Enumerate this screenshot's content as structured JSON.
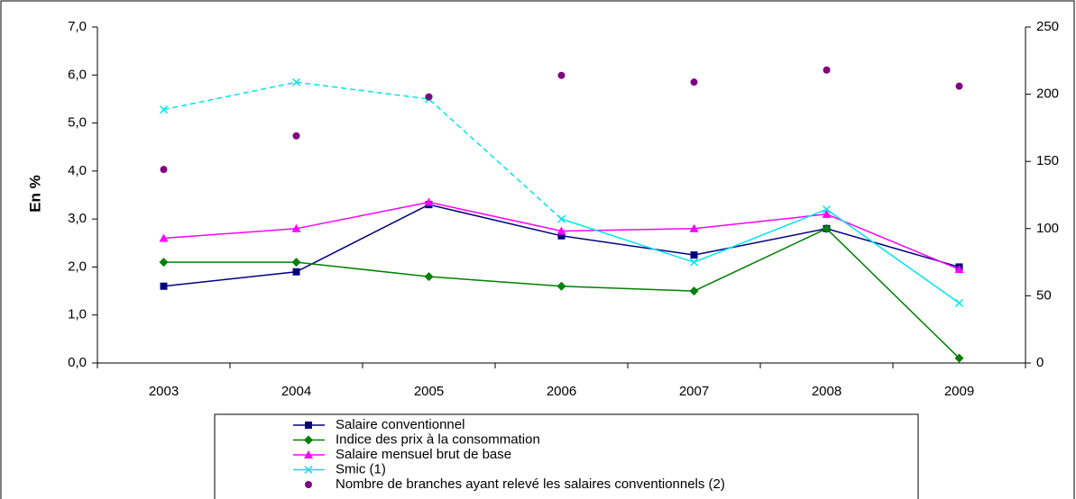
{
  "chart_data": {
    "type": "line",
    "categories": [
      "2003",
      "2004",
      "2005",
      "2006",
      "2007",
      "2008",
      "2009"
    ],
    "y_label": "En %",
    "ylim": [
      0,
      7
    ],
    "yticks": [
      {
        "value": 0,
        "label": "0,0"
      },
      {
        "value": 1,
        "label": "1,0"
      },
      {
        "value": 2,
        "label": "2,0"
      },
      {
        "value": 3,
        "label": "3,0"
      },
      {
        "value": 4,
        "label": "4,0"
      },
      {
        "value": 5,
        "label": "5,0"
      },
      {
        "value": 6,
        "label": "6,0"
      },
      {
        "value": 7,
        "label": "7,0"
      }
    ],
    "y2lim": [
      0,
      250
    ],
    "y2ticks": [
      0,
      50,
      100,
      150,
      200,
      250
    ],
    "series": [
      {
        "name": "Salaire conventionnel",
        "color": "#000080",
        "marker": "square",
        "values": [
          1.6,
          1.9,
          3.3,
          2.65,
          2.25,
          2.8,
          2.0
        ]
      },
      {
        "name": "Indice des prix à la consommation",
        "color": "#008000",
        "marker": "diamond",
        "values": [
          2.1,
          2.1,
          1.8,
          1.6,
          1.5,
          2.8,
          0.1
        ]
      },
      {
        "name": "Salaire mensuel brut de base",
        "color": "#FF00FF",
        "marker": "triangle",
        "values": [
          2.6,
          2.8,
          3.35,
          2.75,
          2.8,
          3.1,
          1.95
        ]
      },
      {
        "name": "Smic (1)",
        "color": "#00E5EE",
        "marker": "x",
        "line_dash": [
          "dashed",
          "dashed",
          "dashed",
          "solid",
          "solid",
          "solid"
        ],
        "values": [
          5.28,
          5.85,
          5.5,
          3.0,
          2.1,
          3.2,
          1.25
        ]
      },
      {
        "name": "Nombre de branches ayant relevé les salaires conventionnels (2)",
        "color": "#800080",
        "marker": "dot",
        "axis": "y2",
        "line": false,
        "values": [
          144,
          169,
          198,
          214,
          209,
          218,
          206
        ]
      }
    ]
  }
}
